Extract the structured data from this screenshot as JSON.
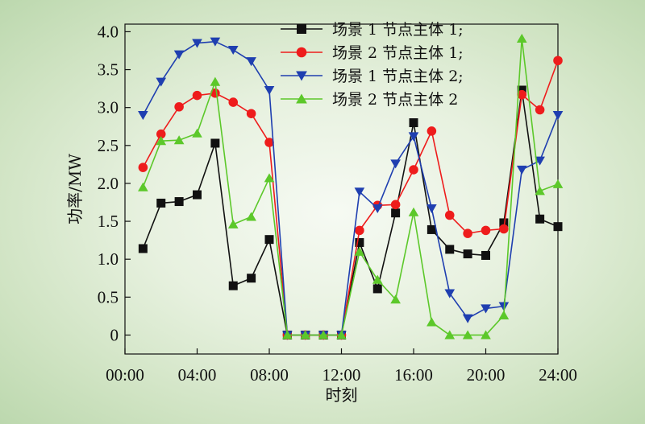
{
  "chart_data": {
    "type": "line",
    "xlabel": "时刻",
    "ylabel": "功率/MW",
    "xlim": [
      0,
      24
    ],
    "ylim": [
      -0.25,
      4.1
    ],
    "x_ticks": [
      0,
      4,
      8,
      12,
      16,
      20,
      24
    ],
    "x_tick_labels": [
      "00:00",
      "04:00",
      "08:00",
      "12:00",
      "16:00",
      "20:00",
      "24:00"
    ],
    "y_ticks": [
      0,
      0.5,
      1.0,
      1.5,
      2.0,
      2.5,
      3.0,
      3.5,
      4.0
    ],
    "y_tick_labels": [
      "0",
      "0.5",
      "1.0",
      "1.5",
      "2.0",
      "2.5",
      "3.0",
      "3.5",
      "4.0"
    ],
    "grid": false,
    "legend_position": "top-right",
    "x": [
      1,
      2,
      3,
      4,
      5,
      6,
      7,
      8,
      9,
      10,
      11,
      12,
      13,
      14,
      15,
      16,
      17,
      18,
      19,
      20,
      21,
      22,
      23,
      24
    ],
    "series": [
      {
        "name": "场景 1 节点主体 1;",
        "color": "#111111",
        "marker": "square",
        "values": [
          1.14,
          1.74,
          1.76,
          1.85,
          2.53,
          0.65,
          0.75,
          1.26,
          0,
          0,
          0,
          0,
          1.22,
          0.61,
          1.61,
          2.8,
          1.39,
          1.13,
          1.07,
          1.05,
          1.48,
          3.23,
          1.53,
          1.43
        ]
      },
      {
        "name": "场景 2 节点主体 1;",
        "color": "#ee1c1c",
        "marker": "circle",
        "values": [
          2.21,
          2.65,
          3.01,
          3.16,
          3.19,
          3.07,
          2.92,
          2.54,
          0,
          0,
          0,
          0,
          1.38,
          1.71,
          1.72,
          2.18,
          2.69,
          1.58,
          1.34,
          1.38,
          1.4,
          3.17,
          2.97,
          3.62
        ]
      },
      {
        "name": "场景 1 节点主体 2;",
        "color": "#1f3fb0",
        "marker": "triangle-down",
        "values": [
          2.9,
          3.34,
          3.7,
          3.85,
          3.87,
          3.76,
          3.61,
          3.23,
          0,
          0,
          0,
          0,
          1.89,
          1.67,
          2.26,
          2.62,
          1.67,
          0.55,
          0.22,
          0.35,
          0.38,
          2.18,
          2.3,
          2.9
        ]
      },
      {
        "name": "场景 2 节点主体 2",
        "color": "#5cc82a",
        "marker": "triangle-up",
        "values": [
          1.95,
          2.56,
          2.57,
          2.66,
          3.34,
          1.46,
          1.56,
          2.07,
          0,
          0,
          0,
          0,
          1.1,
          0.73,
          0.47,
          1.62,
          0.17,
          0,
          0,
          0,
          0.26,
          3.91,
          1.9,
          1.99
        ]
      }
    ]
  }
}
